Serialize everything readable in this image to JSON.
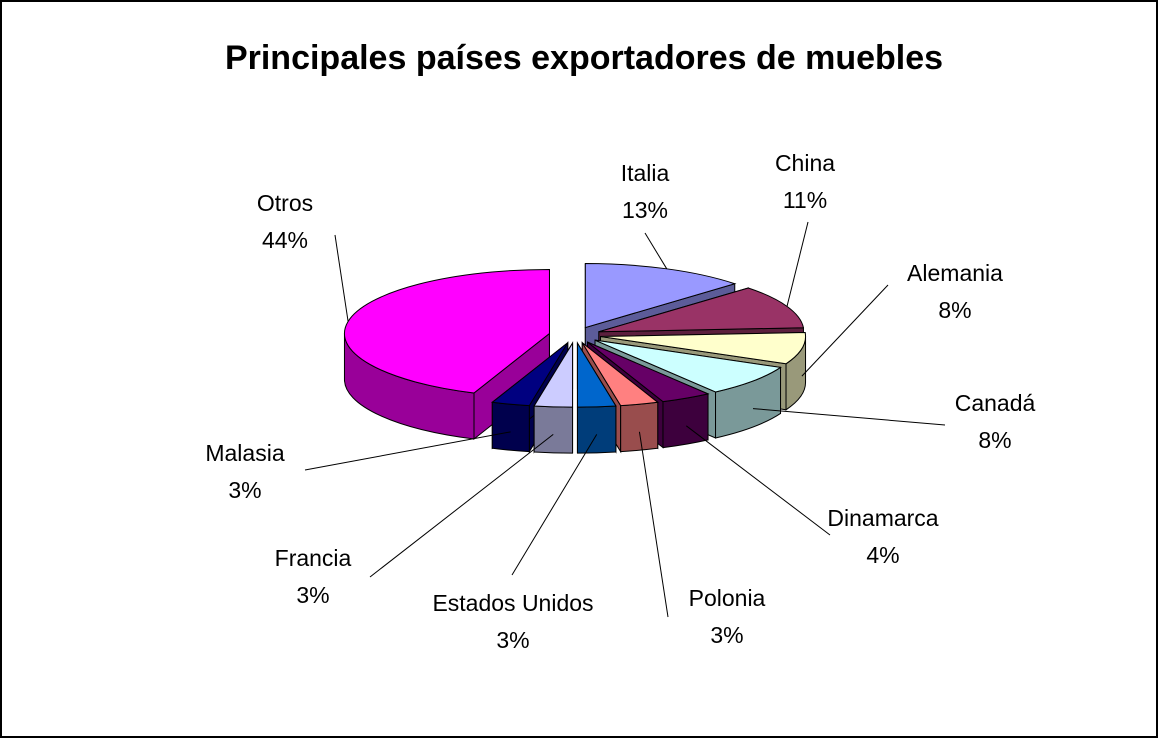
{
  "chart_data": {
    "type": "pie3d",
    "title": "Principales países exportadores de muebles",
    "categories": [
      "Italia",
      "China",
      "Alemania",
      "Canadá",
      "Dinamarca",
      "Polonia",
      "Estados Unidos",
      "Francia",
      "Malasia",
      "Otros"
    ],
    "values": [
      13,
      11,
      8,
      8,
      4,
      3,
      3,
      3,
      3,
      44
    ],
    "value_labels": [
      "13%",
      "11%",
      "8%",
      "8%",
      "4%",
      "3%",
      "3%",
      "3%",
      "3%",
      "44%"
    ],
    "colors": [
      "#9999ff",
      "#993366",
      "#ffffcc",
      "#ccffff",
      "#660066",
      "#ff8080",
      "#0066cc",
      "#ccccff",
      "#000080",
      "#ff00ff"
    ]
  }
}
